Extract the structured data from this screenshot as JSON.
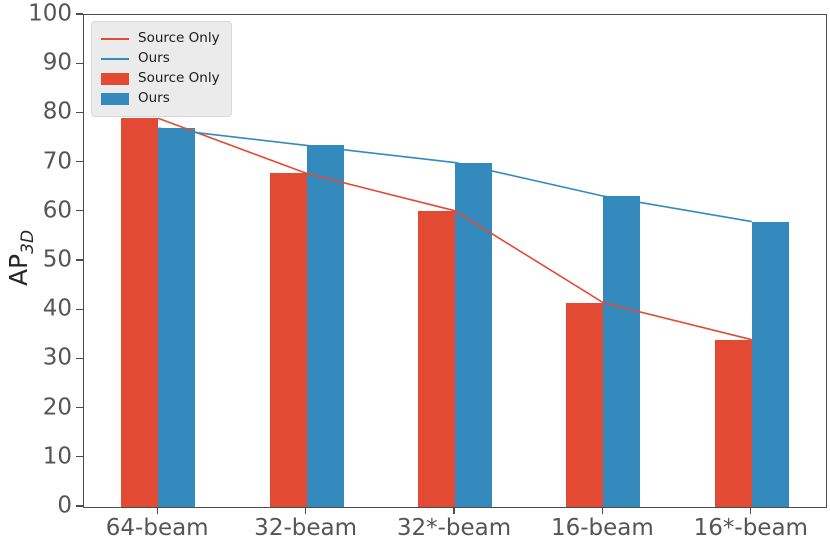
{
  "labels": {
    "y_main": "AP",
    "y_sub": "3D"
  },
  "colors": {
    "source_only": "#E24A33",
    "ours": "#348ABD",
    "tick_text": "#555555",
    "spine": "#4d4d4d",
    "legend_bg": "#ebebeb"
  },
  "chart_data": {
    "type": "bar",
    "title": "",
    "xlabel": "",
    "ylabel": "AP_3D",
    "ylim": [
      0,
      100
    ],
    "yticks": [
      0,
      10,
      20,
      30,
      40,
      50,
      60,
      70,
      80,
      90,
      100
    ],
    "grid": false,
    "legend_position": "upper-left",
    "categories": [
      "64-beam",
      "32-beam",
      "32*-beam",
      "16-beam",
      "16*-beam"
    ],
    "series": [
      {
        "name": "Source Only",
        "render": "bar",
        "color": "#E24A33",
        "values": [
          79,
          67.8,
          60.2,
          41.5,
          34
        ]
      },
      {
        "name": "Ours",
        "render": "bar",
        "color": "#348ABD",
        "values": [
          77,
          73.5,
          70,
          63.2,
          58
        ]
      },
      {
        "name": "Source Only",
        "render": "line",
        "color": "#E24A33",
        "values": [
          79,
          67.8,
          60.2,
          41.5,
          34
        ]
      },
      {
        "name": "Ours",
        "render": "line",
        "color": "#348ABD",
        "values": [
          77,
          73.5,
          70,
          63.2,
          58
        ]
      }
    ],
    "legend_entries": [
      {
        "marker": "line",
        "color": "#E24A33",
        "label": "Source Only"
      },
      {
        "marker": "line",
        "color": "#348ABD",
        "label": "Ours"
      },
      {
        "marker": "patch",
        "color": "#E24A33",
        "label": "Source Only"
      },
      {
        "marker": "patch",
        "color": "#348ABD",
        "label": "Ours"
      }
    ]
  }
}
